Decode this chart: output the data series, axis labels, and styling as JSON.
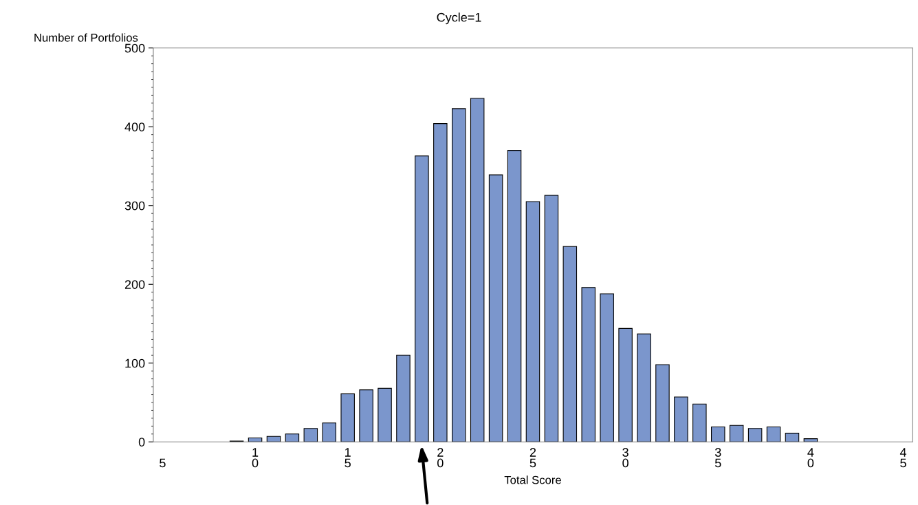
{
  "chart_data": {
    "type": "bar",
    "title": "Cycle=1",
    "xlabel": "Total Score",
    "ylabel": "Number of Portfolios",
    "x": [
      9,
      10,
      11,
      12,
      13,
      14,
      15,
      16,
      17,
      18,
      19,
      20,
      21,
      22,
      23,
      24,
      25,
      26,
      27,
      28,
      29,
      30,
      31,
      32,
      33,
      34,
      35,
      36,
      37,
      38,
      39,
      40
    ],
    "values": [
      1,
      5,
      7,
      10,
      17,
      24,
      61,
      66,
      68,
      110,
      363,
      404,
      423,
      436,
      339,
      370,
      305,
      313,
      248,
      196,
      188,
      144,
      137,
      98,
      57,
      48,
      19,
      21,
      17,
      19,
      11,
      4
    ],
    "color": "#7b96cc",
    "xlim": [
      4.5,
      45.5
    ],
    "xticks": [
      5,
      10,
      15,
      20,
      25,
      30,
      35,
      40,
      45
    ],
    "ylim": [
      0,
      500
    ],
    "yticks": [
      0,
      100,
      200,
      300,
      400,
      500
    ],
    "grid": false
  }
}
